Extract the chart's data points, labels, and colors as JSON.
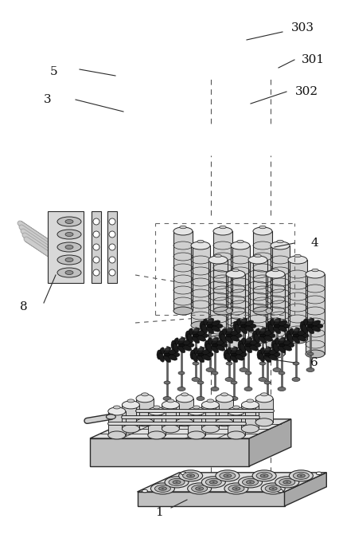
{
  "fig_width": 4.26,
  "fig_height": 6.85,
  "dpi": 100,
  "bg_color": "#ffffff",
  "lc": "#2a2a2a",
  "plate_top": "#e0e0e0",
  "plate_front": "#c0c0c0",
  "plate_right": "#a8a8a8",
  "cyl_body": "#d0d0d0",
  "cyl_top": "#e8e8e8",
  "cyl_dark": "#909090",
  "dark_elem": "#303030",
  "mid_gray": "#888888"
}
